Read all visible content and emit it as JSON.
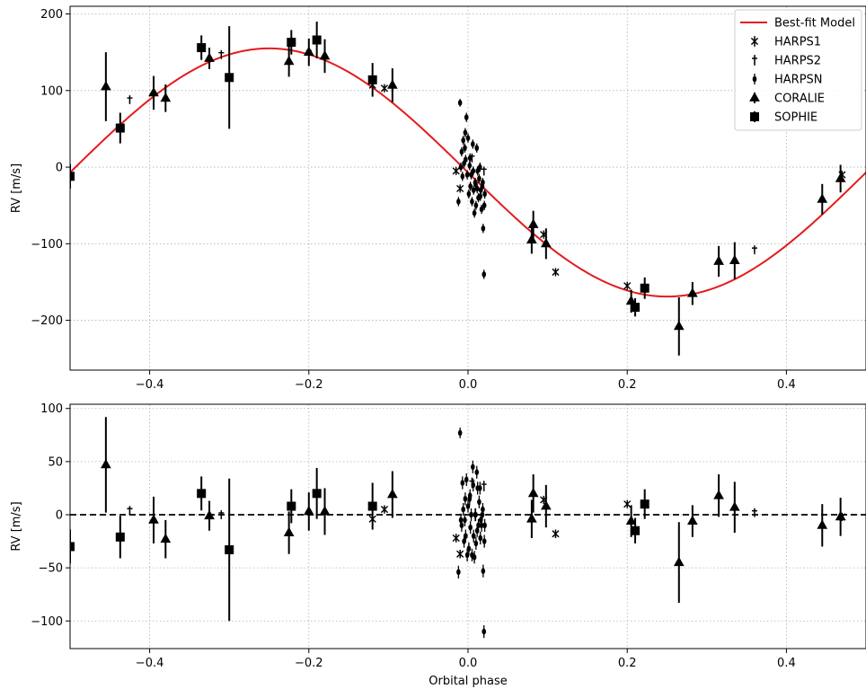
{
  "chart_data": [
    {
      "type": "scatter",
      "panel": "top",
      "xlabel": "",
      "ylabel": "RV [m/s]",
      "xlim": [
        -0.5,
        0.5
      ],
      "ylim": [
        -265,
        210
      ],
      "xticks": [
        "−0.4",
        "−0.2",
        "0.0",
        "0.2",
        "0.4"
      ],
      "yticks": [
        "−200",
        "−100",
        "0",
        "100",
        "200"
      ],
      "grid": true,
      "legend_position": "top-right",
      "legend": [
        "Best-fit Model",
        "HARPS1",
        "HARPS2",
        "HARPSN",
        "CORALIE",
        "SOPHIE"
      ],
      "model": {
        "name": "Best-fit Model",
        "color": "#e41a1c",
        "amplitude": 162,
        "offset": -7,
        "phase_of_max": -0.25
      },
      "series": [
        {
          "name": "HARPS1",
          "marker": "x",
          "x": [
            -0.12,
            -0.105,
            -0.015,
            -0.01,
            0.095,
            0.11,
            0.2,
            0.47
          ],
          "y": [
            107,
            103,
            -5,
            -28,
            -88,
            -137,
            -155,
            -10
          ],
          "err": [
            3,
            3,
            4,
            4,
            3,
            4,
            3,
            3
          ]
        },
        {
          "name": "HARPS2",
          "marker": "|",
          "x": [
            -0.425,
            -0.31,
            -0.2,
            0.005,
            0.02,
            0.36
          ],
          "y": [
            88,
            147,
            150,
            12,
            -5,
            -108
          ],
          "err": [
            4,
            4,
            4,
            5,
            5,
            3
          ]
        },
        {
          "name": "HARPSN",
          "marker": "o",
          "x": [
            -0.012,
            -0.01,
            -0.008,
            -0.006,
            -0.005,
            -0.004,
            -0.003,
            -0.002,
            -0.001,
            0.0,
            0.001,
            0.002,
            0.003,
            0.004,
            0.005,
            0.006,
            0.007,
            0.008,
            0.009,
            0.01,
            0.011,
            0.012,
            0.013,
            0.014,
            0.015,
            0.016,
            0.017,
            0.018,
            0.019,
            0.02,
            0.021,
            -0.009,
            -0.007,
            0.0025,
            0.0115,
            0.0155,
            0.0185,
            0.0205,
            -0.0035,
            0.0065,
            0.0095
          ],
          "y": [
            -45,
            84,
            20,
            35,
            5,
            25,
            10,
            65,
            -10,
            38,
            -35,
            2,
            -25,
            -10,
            -45,
            30,
            -30,
            -60,
            -20,
            -50,
            25,
            -5,
            -40,
            -15,
            0,
            -30,
            -55,
            -25,
            -80,
            -140,
            -35,
            0,
            -12,
            12,
            -28,
            -38,
            -20,
            -50,
            45,
            -5,
            -22
          ],
          "err": [
            6,
            5,
            6,
            6,
            6,
            6,
            6,
            6,
            6,
            6,
            6,
            6,
            6,
            6,
            6,
            6,
            6,
            6,
            6,
            6,
            6,
            6,
            6,
            6,
            6,
            6,
            6,
            6,
            6,
            6,
            6,
            6,
            6,
            6,
            6,
            6,
            6,
            6,
            6,
            6,
            6
          ]
        },
        {
          "name": "CORALIE",
          "marker": "^",
          "x": [
            -0.455,
            -0.395,
            -0.38,
            -0.325,
            -0.225,
            -0.2,
            -0.18,
            -0.095,
            0.08,
            0.082,
            0.098,
            0.205,
            0.265,
            0.282,
            0.315,
            0.335,
            0.445,
            0.468
          ],
          "y": [
            105,
            97,
            90,
            142,
            138,
            150,
            145,
            107,
            -95,
            -75,
            -100,
            -175,
            -208,
            -165,
            -123,
            -122,
            -42,
            -15
          ],
          "err": [
            45,
            22,
            18,
            14,
            20,
            18,
            22,
            22,
            18,
            18,
            20,
            15,
            38,
            15,
            20,
            24,
            20,
            18
          ]
        },
        {
          "name": "SOPHIE",
          "marker": "s",
          "x": [
            -0.5,
            -0.437,
            -0.335,
            -0.3,
            -0.222,
            -0.19,
            -0.12,
            0.21,
            0.222
          ],
          "y": [
            -12,
            51,
            156,
            117,
            163,
            166,
            114,
            -183,
            -158
          ],
          "err": [
            16,
            20,
            16,
            67,
            16,
            24,
            22,
            12,
            14
          ]
        }
      ]
    },
    {
      "type": "scatter",
      "panel": "bottom",
      "xlabel": "Orbital phase",
      "ylabel": "RV [m/s]",
      "xlim": [
        -0.5,
        0.5
      ],
      "ylim": [
        -126,
        104
      ],
      "xticks": [
        "−0.4",
        "−0.2",
        "0.0",
        "0.2",
        "0.4"
      ],
      "yticks": [
        "−100",
        "−50",
        "0",
        "50",
        "100"
      ],
      "grid": true,
      "reference_line": 0,
      "series": [
        {
          "name": "HARPS1",
          "marker": "x",
          "x": [
            -0.12,
            -0.105,
            -0.015,
            -0.01,
            0.095,
            0.11,
            0.2,
            0.47
          ],
          "y": [
            -4,
            5,
            -22,
            -37,
            14,
            -18,
            10,
            -2
          ],
          "err": [
            3,
            3,
            4,
            4,
            3,
            4,
            3,
            3
          ]
        },
        {
          "name": "HARPS2",
          "marker": "|",
          "x": [
            -0.425,
            -0.31,
            -0.2,
            0.005,
            0.02,
            0.36
          ],
          "y": [
            4,
            0,
            1,
            30,
            27,
            2
          ],
          "err": [
            4,
            4,
            4,
            5,
            5,
            3
          ]
        },
        {
          "name": "HARPSN",
          "marker": "o",
          "x": [
            -0.012,
            -0.01,
            -0.008,
            -0.006,
            -0.005,
            -0.004,
            -0.003,
            -0.002,
            -0.001,
            0.0,
            0.001,
            0.002,
            0.003,
            0.004,
            0.005,
            0.006,
            0.007,
            0.008,
            0.009,
            0.01,
            0.011,
            0.012,
            0.013,
            0.014,
            0.015,
            0.016,
            0.017,
            0.018,
            0.019,
            0.02,
            0.021,
            -0.009,
            -0.007,
            0.0025,
            0.0115,
            0.0155,
            0.0185,
            0.0205,
            -0.0035,
            0.0065,
            0.0095
          ],
          "y": [
            -54,
            77,
            -10,
            5,
            -25,
            -5,
            -20,
            33,
            -38,
            8,
            -32,
            15,
            -12,
            0,
            -38,
            45,
            -20,
            -40,
            0,
            -27,
            40,
            25,
            -10,
            12,
            25,
            -5,
            -10,
            0,
            -53,
            -110,
            -10,
            -5,
            30,
            18,
            -15,
            -22,
            5,
            -25,
            15,
            28,
            0
          ],
          "err": [
            6,
            5,
            6,
            6,
            6,
            6,
            6,
            6,
            6,
            6,
            6,
            6,
            6,
            6,
            6,
            6,
            6,
            6,
            6,
            6,
            6,
            6,
            6,
            6,
            6,
            6,
            6,
            6,
            6,
            6,
            6,
            6,
            6,
            6,
            6,
            6,
            6,
            6,
            6,
            6,
            6
          ]
        },
        {
          "name": "CORALIE",
          "marker": "^",
          "x": [
            -0.455,
            -0.395,
            -0.38,
            -0.325,
            -0.225,
            -0.2,
            -0.18,
            -0.095,
            0.08,
            0.082,
            0.098,
            0.205,
            0.265,
            0.282,
            0.315,
            0.335,
            0.445,
            0.468
          ],
          "y": [
            47,
            -5,
            -23,
            -1,
            -17,
            3,
            3,
            19,
            -4,
            20,
            8,
            -6,
            -45,
            -6,
            18,
            7,
            -10,
            -2
          ],
          "err": [
            45,
            22,
            18,
            14,
            20,
            18,
            22,
            22,
            18,
            18,
            20,
            15,
            38,
            15,
            20,
            24,
            20,
            18
          ]
        },
        {
          "name": "SOPHIE",
          "marker": "s",
          "x": [
            -0.5,
            -0.437,
            -0.335,
            -0.3,
            -0.222,
            -0.19,
            -0.12,
            0.21,
            0.222
          ],
          "y": [
            -30,
            -21,
            20,
            -33,
            8,
            20,
            8,
            -15,
            10
          ],
          "err": [
            16,
            20,
            16,
            67,
            16,
            24,
            22,
            12,
            14
          ]
        }
      ]
    }
  ]
}
